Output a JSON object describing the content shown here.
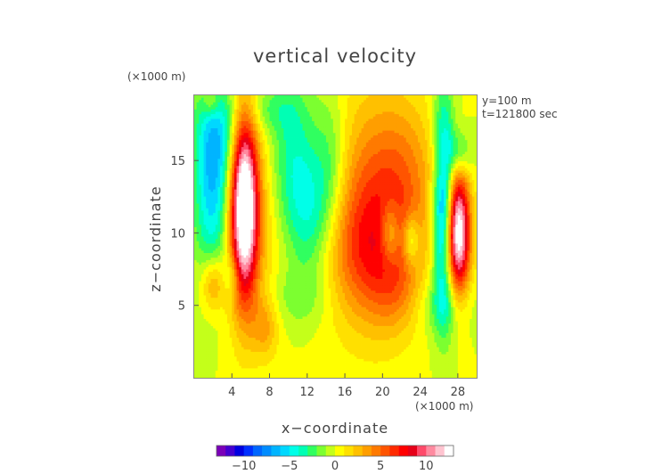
{
  "chart_data": {
    "type": "heatmap",
    "title": "vertical velocity",
    "xlabel": "x−coordinate",
    "ylabel": "z−coordinate",
    "x_unit": "(×1000 m)",
    "y_unit": "(×1000 m)",
    "annotations": [
      "y=100 m",
      "t=121800 sec"
    ],
    "x_ticks": [
      4,
      8,
      12,
      16,
      20,
      24,
      28
    ],
    "y_ticks": [
      5,
      10,
      15
    ],
    "xlim": [
      0,
      30
    ],
    "ylim": [
      0,
      19.5
    ],
    "colorbar": {
      "ticks": [
        -10,
        -5,
        0,
        5,
        10
      ],
      "tick_labels": [
        "−10",
        "−5",
        "0",
        "5",
        "10"
      ],
      "range": [
        -13,
        13
      ]
    },
    "colors": [
      "#7a00b8",
      "#4400d0",
      "#0000e0",
      "#0030ff",
      "#0066ff",
      "#008cff",
      "#00b4ff",
      "#00d8ff",
      "#00ffe8",
      "#00ffb4",
      "#30ff60",
      "#7cff30",
      "#c4ff1a",
      "#ffff00",
      "#ffe000",
      "#ffc000",
      "#ff9e00",
      "#ff7a00",
      "#ff5400",
      "#ff2a00",
      "#ff0000",
      "#e60018",
      "#ff4a6a",
      "#ff8aa0",
      "#ffc4d0",
      "#ffffff"
    ],
    "field_features": [
      {
        "x": 5.3,
        "z": 12.0,
        "sx": 1.0,
        "sz": 4.5,
        "amp": 14,
        "note": "strong updraft"
      },
      {
        "x": 6.0,
        "z": 11.0,
        "sx": 2.3,
        "sz": 5.2,
        "amp": 3
      },
      {
        "x": 28.0,
        "z": 10.0,
        "sx": 0.9,
        "sz": 3.0,
        "amp": 14,
        "note": "strong updraft"
      },
      {
        "x": 19.0,
        "z": 11.5,
        "sx": 3.5,
        "sz": 5.5,
        "amp": 5
      },
      {
        "x": 18.5,
        "z": 8.5,
        "sx": 3.0,
        "sz": 3.0,
        "amp": 3
      },
      {
        "x": 22.5,
        "z": 13.5,
        "sx": 2.5,
        "sz": 4.0,
        "amp": 2.5
      },
      {
        "x": 21.5,
        "z": 6.0,
        "sx": 1.8,
        "sz": 2.0,
        "amp": 1.8
      },
      {
        "x": 2.0,
        "z": 6.5,
        "sx": 0.9,
        "sz": 1.4,
        "amp": 4
      },
      {
        "x": 7.5,
        "z": 3.5,
        "sx": 1.0,
        "sz": 1.5,
        "amp": 2.8
      },
      {
        "x": 1.8,
        "z": 19.0,
        "sx": 0.6,
        "sz": 0.7,
        "amp": 2.5
      },
      {
        "x": 26.5,
        "z": 15.0,
        "sx": 0.9,
        "sz": 1.5,
        "amp": 2.2
      },
      {
        "x": 2.0,
        "z": 13.0,
        "sx": 1.4,
        "sz": 4.5,
        "amp": -6
      },
      {
        "x": 3.0,
        "z": 17.0,
        "sx": 2.0,
        "sz": 2.5,
        "amp": -3
      },
      {
        "x": 10.5,
        "z": 14.5,
        "sx": 1.8,
        "sz": 4.0,
        "amp": -4
      },
      {
        "x": 12.5,
        "z": 11.0,
        "sx": 1.5,
        "sz": 3.0,
        "amp": -3
      },
      {
        "x": 14.5,
        "z": 14.5,
        "sx": 1.3,
        "sz": 3.5,
        "amp": -3
      },
      {
        "x": 26.5,
        "z": 12.0,
        "sx": 0.8,
        "sz": 5.0,
        "amp": -9
      },
      {
        "x": 28.0,
        "z": 15.5,
        "sx": 1.0,
        "sz": 1.2,
        "amp": -4
      },
      {
        "x": 26.5,
        "z": 5.0,
        "sx": 2.0,
        "sz": 1.5,
        "amp": -2.2
      },
      {
        "x": 20.8,
        "z": 10.0,
        "sx": 0.7,
        "sz": 1.5,
        "amp": -4
      },
      {
        "x": 23.0,
        "z": 9.5,
        "sx": 0.6,
        "sz": 1.2,
        "amp": -4
      },
      {
        "x": 4.0,
        "z": 7.0,
        "sx": 0.6,
        "sz": 1.0,
        "amp": -2.5
      },
      {
        "x": 11.0,
        "z": 5.5,
        "sx": 2.5,
        "sz": 1.5,
        "amp": -1.6
      },
      {
        "x": 8.0,
        "z": 18.5,
        "sx": 2.0,
        "sz": 1.2,
        "amp": -2
      }
    ]
  }
}
